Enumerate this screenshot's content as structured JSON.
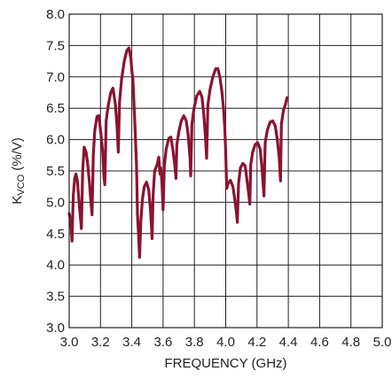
{
  "chart_data": {
    "type": "line",
    "xlabel": "FREQUENCY (GHz)",
    "ylabel": {
      "base": "K",
      "sub": "VCO",
      "rest": " (%/V)"
    },
    "xlim": [
      3.0,
      5.0
    ],
    "ylim": [
      3.0,
      8.0
    ],
    "x_ticks": [
      "3.0",
      "3.2",
      "3.4",
      "3.6",
      "3.8",
      "4.0",
      "4.2",
      "4.4",
      "4.6",
      "4.8",
      "5.0"
    ],
    "y_ticks": [
      "3.0",
      "3.5",
      "4.0",
      "4.5",
      "5.0",
      "5.5",
      "6.0",
      "6.5",
      "7.0",
      "7.5",
      "8.0"
    ],
    "grid": true,
    "series_color": "#8b1330",
    "series": [
      {
        "points": [
          [
            3.0,
            4.82
          ],
          [
            3.01,
            4.7
          ],
          [
            3.018,
            4.38
          ],
          [
            3.026,
            5.1
          ],
          [
            3.035,
            5.38
          ],
          [
            3.043,
            5.45
          ],
          [
            3.052,
            5.35
          ],
          [
            3.062,
            5.05
          ],
          [
            3.07,
            4.8
          ],
          [
            3.078,
            4.58
          ],
          [
            3.086,
            5.5
          ],
          [
            3.096,
            5.88
          ],
          [
            3.108,
            5.8
          ],
          [
            3.118,
            5.62
          ],
          [
            3.13,
            5.3
          ],
          [
            3.14,
            4.97
          ],
          [
            3.146,
            4.8
          ],
          [
            3.154,
            5.75
          ],
          [
            3.164,
            6.15
          ],
          [
            3.178,
            6.37
          ],
          [
            3.19,
            6.38
          ],
          [
            3.202,
            6.1
          ],
          [
            3.214,
            5.8
          ],
          [
            3.222,
            5.4
          ],
          [
            3.228,
            5.28
          ],
          [
            3.236,
            6.3
          ],
          [
            3.25,
            6.55
          ],
          [
            3.266,
            6.75
          ],
          [
            3.28,
            6.82
          ],
          [
            3.296,
            6.55
          ],
          [
            3.306,
            6.2
          ],
          [
            3.314,
            5.8
          ],
          [
            3.322,
            6.6
          ],
          [
            3.334,
            6.95
          ],
          [
            3.352,
            7.25
          ],
          [
            3.368,
            7.42
          ],
          [
            3.382,
            7.46
          ],
          [
            3.394,
            7.3
          ],
          [
            3.402,
            7.05
          ],
          [
            3.406,
            7.0
          ],
          [
            3.412,
            6.7
          ],
          [
            3.42,
            6.25
          ],
          [
            3.43,
            5.6
          ],
          [
            3.436,
            4.8
          ],
          [
            3.442,
            4.55
          ],
          [
            3.45,
            4.12
          ],
          [
            3.458,
            4.7
          ],
          [
            3.468,
            5.05
          ],
          [
            3.48,
            5.25
          ],
          [
            3.494,
            5.32
          ],
          [
            3.508,
            5.2
          ],
          [
            3.52,
            4.85
          ],
          [
            3.53,
            4.42
          ],
          [
            3.536,
            5.1
          ],
          [
            3.546,
            5.5
          ],
          [
            3.562,
            5.6
          ],
          [
            3.572,
            5.72
          ],
          [
            3.58,
            5.45
          ],
          [
            3.586,
            5.55
          ],
          [
            3.594,
            5.25
          ],
          [
            3.6,
            4.88
          ],
          [
            3.608,
            5.58
          ],
          [
            3.62,
            5.85
          ],
          [
            3.636,
            6.02
          ],
          [
            3.65,
            6.04
          ],
          [
            3.662,
            5.85
          ],
          [
            3.674,
            5.6
          ],
          [
            3.682,
            5.38
          ],
          [
            3.688,
            5.92
          ],
          [
            3.7,
            6.12
          ],
          [
            3.716,
            6.3
          ],
          [
            3.732,
            6.38
          ],
          [
            3.748,
            6.3
          ],
          [
            3.76,
            6.08
          ],
          [
            3.772,
            5.7
          ],
          [
            3.776,
            5.42
          ],
          [
            3.784,
            6.25
          ],
          [
            3.798,
            6.5
          ],
          [
            3.816,
            6.7
          ],
          [
            3.834,
            6.77
          ],
          [
            3.848,
            6.68
          ],
          [
            3.86,
            6.4
          ],
          [
            3.87,
            6.05
          ],
          [
            3.878,
            5.7
          ],
          [
            3.886,
            6.55
          ],
          [
            3.9,
            6.8
          ],
          [
            3.918,
            7.0
          ],
          [
            3.936,
            7.13
          ],
          [
            3.95,
            7.13
          ],
          [
            3.964,
            6.98
          ],
          [
            3.976,
            6.75
          ],
          [
            3.986,
            6.5
          ],
          [
            3.994,
            6.2
          ],
          [
            4.0,
            5.8
          ],
          [
            4.006,
            5.22
          ],
          [
            4.016,
            5.3
          ],
          [
            4.03,
            5.35
          ],
          [
            4.046,
            5.25
          ],
          [
            4.058,
            5.05
          ],
          [
            4.068,
            4.85
          ],
          [
            4.074,
            4.68
          ],
          [
            4.082,
            5.3
          ],
          [
            4.094,
            5.55
          ],
          [
            4.11,
            5.62
          ],
          [
            4.124,
            5.58
          ],
          [
            4.136,
            5.35
          ],
          [
            4.146,
            5.15
          ],
          [
            4.154,
            4.97
          ],
          [
            4.16,
            5.6
          ],
          [
            4.172,
            5.8
          ],
          [
            4.188,
            5.92
          ],
          [
            4.204,
            5.95
          ],
          [
            4.22,
            5.85
          ],
          [
            4.232,
            5.55
          ],
          [
            4.24,
            5.25
          ],
          [
            4.244,
            5.1
          ],
          [
            4.252,
            5.95
          ],
          [
            4.266,
            6.15
          ],
          [
            4.284,
            6.28
          ],
          [
            4.3,
            6.3
          ],
          [
            4.316,
            6.22
          ],
          [
            4.33,
            6.0
          ],
          [
            4.342,
            5.7
          ],
          [
            4.35,
            5.34
          ],
          [
            4.356,
            6.25
          ],
          [
            4.37,
            6.48
          ],
          [
            4.38,
            6.55
          ],
          [
            4.392,
            6.67
          ]
        ]
      }
    ]
  }
}
